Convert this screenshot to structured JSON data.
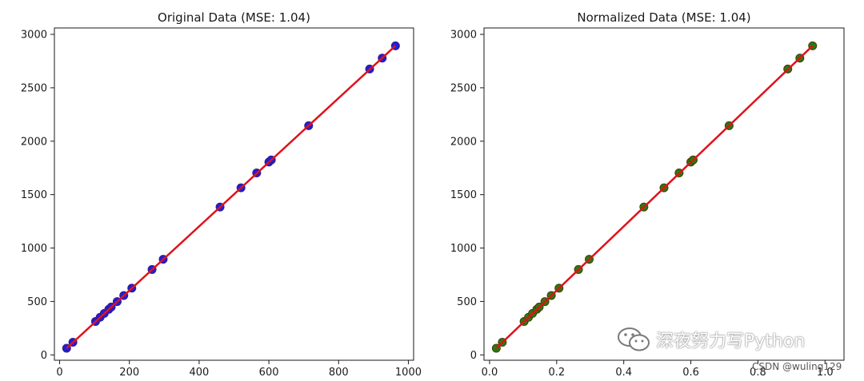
{
  "chart_data": [
    {
      "type": "scatter",
      "title": "Original Data (MSE: 1.04)",
      "xlabel": "",
      "ylabel": "",
      "xlim": [
        -15,
        1015
      ],
      "ylim": [
        -50,
        3060
      ],
      "xticks": [
        0,
        200,
        400,
        600,
        800,
        1000
      ],
      "yticks": [
        0,
        500,
        1000,
        1500,
        2000,
        2500,
        3000
      ],
      "point_color": "#1f1fd6",
      "point_edge": "#3a1a8a",
      "line_color": "#e0121b",
      "x": [
        20,
        38,
        103,
        116,
        128,
        141,
        148,
        165,
        184,
        207,
        265,
        297,
        460,
        520,
        565,
        600,
        607,
        714,
        889,
        925,
        963
      ],
      "y": [
        62,
        118,
        313,
        352,
        388,
        427,
        448,
        499,
        556,
        625,
        799,
        895,
        1384,
        1564,
        1703,
        1805,
        1825,
        2145,
        2676,
        2778,
        2893
      ],
      "fit_line": {
        "x": [
          20,
          963
        ],
        "y": [
          62,
          2893
        ]
      }
    },
    {
      "type": "scatter",
      "title": "Normalized Data (MSE: 1.04)",
      "xlabel": "",
      "ylabel": "",
      "xlim": [
        -0.0166,
        1.0566
      ],
      "ylim": [
        -50,
        3060
      ],
      "xticks": [
        0.0,
        0.2,
        0.4,
        0.6,
        0.8,
        1.0
      ],
      "xtick_labels": [
        "0.0",
        "0.2",
        "0.4",
        "0.6",
        "0.8",
        "1.0"
      ],
      "yticks": [
        0,
        500,
        1000,
        1500,
        2000,
        2500,
        3000
      ],
      "point_color": "#2a7a0c",
      "point_edge": "#4a3a10",
      "line_color": "#e0121b",
      "x": [
        0.02,
        0.038,
        0.103,
        0.116,
        0.128,
        0.141,
        0.148,
        0.165,
        0.184,
        0.207,
        0.265,
        0.297,
        0.46,
        0.52,
        0.565,
        0.6,
        0.607,
        0.714,
        0.889,
        0.925,
        0.963
      ],
      "y": [
        62,
        118,
        313,
        352,
        388,
        427,
        448,
        499,
        556,
        625,
        799,
        895,
        1384,
        1564,
        1703,
        1805,
        1825,
        2145,
        2676,
        2778,
        2893
      ],
      "fit_line": {
        "x": [
          0.02,
          0.963
        ],
        "y": [
          62,
          2893
        ]
      }
    }
  ],
  "watermark": {
    "text": "深夜努力写Python",
    "sub": "CSDN @wuling129"
  }
}
